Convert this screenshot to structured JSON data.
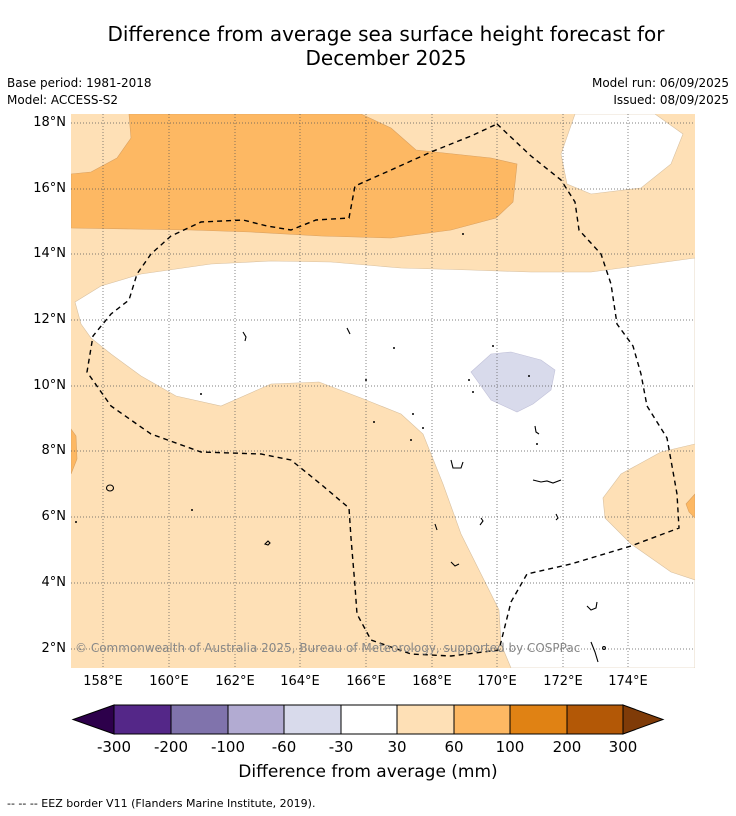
{
  "header": {
    "title_line1": "Difference from average sea surface height forecast for",
    "title_line2": "December 2025",
    "base_period": "Base period: 1981-2018",
    "model": "Model: ACCESS-S2",
    "model_run": "Model run: 06/09/2025",
    "issued": "Issued: 08/09/2025"
  },
  "map": {
    "lat_labels": [
      "18°N",
      "16°N",
      "14°N",
      "12°N",
      "10°N",
      "8°N",
      "6°N",
      "4°N",
      "2°N"
    ],
    "lon_labels": [
      "158°E",
      "160°E",
      "162°E",
      "164°E",
      "166°E",
      "168°E",
      "170°E",
      "172°E",
      "174°E"
    ],
    "copyright": "© Commonwealth of Australia 2025, Bureau of Meteorology, supported by COSPPac"
  },
  "colorbar": {
    "title": "Difference from average (mm)",
    "ticks": [
      "-300",
      "-200",
      "-100",
      "-60",
      "-30",
      "30",
      "60",
      "100",
      "200",
      "300"
    ],
    "colors": [
      "#2d004b",
      "#542788",
      "#8073ac",
      "#b2abd2",
      "#d8daeb",
      "#ffffff",
      "#fee0b6",
      "#fdb863",
      "#e08214",
      "#b35806",
      "#7f3b08"
    ]
  },
  "footnote": "-- -- -- EEZ border V11 (Flanders Marine Institute, 2019)."
}
